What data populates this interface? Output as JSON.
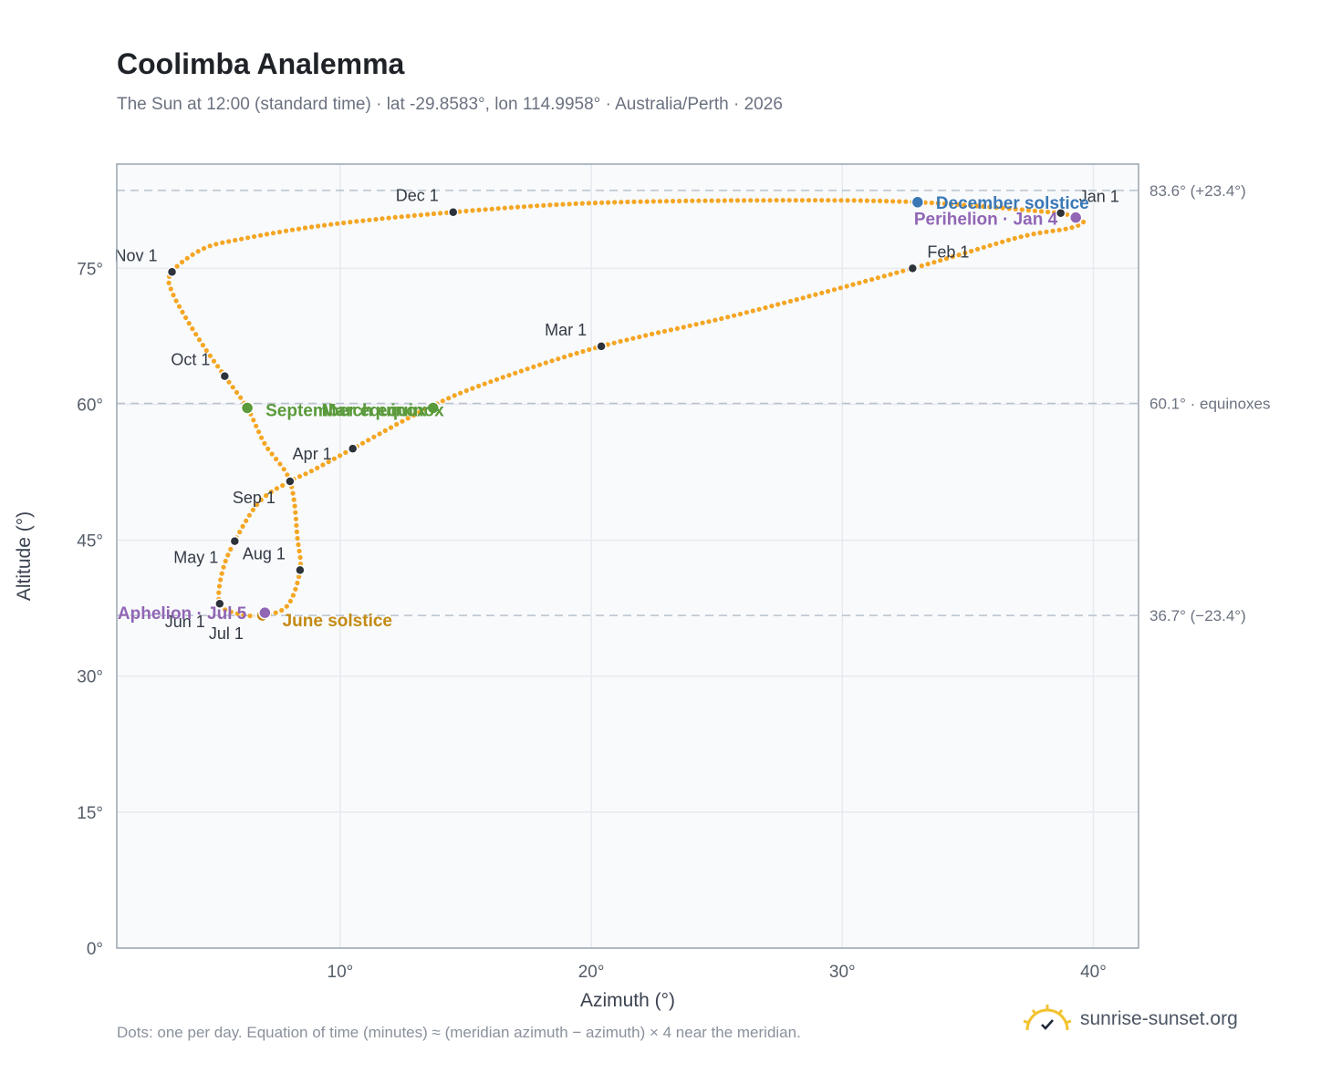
{
  "header": {
    "title": "Coolimba Analemma",
    "subtitle": "The Sun at 12:00 (standard time) · lat -29.8583°, lon 114.9958° · Australia/Perth · 2026"
  },
  "footer": {
    "note": "Dots: one per day. Equation of time (minutes) ≈ (meridian azimuth − azimuth) × 4 near the meridian.",
    "brand": "sunrise-sunset.org"
  },
  "colors": {
    "path": "#f5a623",
    "month_marker": "#2d333b",
    "equinox": "#5a9a3a",
    "december_solstice": "#3a78b5",
    "june_solstice": "#c48a12",
    "apsis": "#9166b5",
    "plot_bg": "#f8fafc",
    "grid": "#e6eaef",
    "ref_line": "#b9c2cc"
  },
  "chart_data": {
    "type": "scatter",
    "title": "Coolimba Analemma",
    "xlabel": "Azimuth (°)",
    "ylabel": "Altitude (°)",
    "xlim": [
      1.1,
      41.8
    ],
    "ylim": [
      0,
      86.5
    ],
    "x_ticks": [
      10,
      20,
      30,
      40
    ],
    "x_tick_labels": [
      "10°",
      "20°",
      "30°",
      "40°"
    ],
    "y_ticks": [
      0,
      15,
      30,
      45,
      60,
      75
    ],
    "y_tick_labels": [
      "0°",
      "15°",
      "30°",
      "45°",
      "60°",
      "75°"
    ],
    "grid": true,
    "reference_lines": [
      {
        "y": 83.6,
        "label": "83.6° (+23.4°)"
      },
      {
        "y": 60.1,
        "label": "60.1° · equinoxes"
      },
      {
        "y": 36.7,
        "label": "36.7° (−23.4°)"
      }
    ],
    "path_knots": [
      [
        38.7,
        81.1
      ],
      [
        39.4,
        80.6
      ],
      [
        39.6,
        80.1
      ],
      [
        39.0,
        79.4
      ],
      [
        37.0,
        78.4
      ],
      [
        32.8,
        75.0
      ],
      [
        26.0,
        70.0
      ],
      [
        20.4,
        66.4
      ],
      [
        16.0,
        62.5
      ],
      [
        13.5,
        59.6
      ],
      [
        10.5,
        55.1
      ],
      [
        8.9,
        52.7
      ],
      [
        8.0,
        51.5
      ],
      [
        6.8,
        49.3
      ],
      [
        5.8,
        44.9
      ],
      [
        5.3,
        41.5
      ],
      [
        5.2,
        38.0
      ],
      [
        5.9,
        36.9
      ],
      [
        6.9,
        36.7
      ],
      [
        7.9,
        37.8
      ],
      [
        8.4,
        41.7
      ],
      [
        8.3,
        45.2
      ],
      [
        8.0,
        51.5
      ],
      [
        7.0,
        55.6
      ],
      [
        6.3,
        59.6
      ],
      [
        5.4,
        63.1
      ],
      [
        4.3,
        67.5
      ],
      [
        3.3,
        72.4
      ],
      [
        3.3,
        74.6
      ],
      [
        4.5,
        77.1
      ],
      [
        6.0,
        78.2
      ],
      [
        9.5,
        79.8
      ],
      [
        14.5,
        81.2
      ],
      [
        20.0,
        82.2
      ],
      [
        27.0,
        82.5
      ],
      [
        33.0,
        82.3
      ],
      [
        38.7,
        81.1
      ]
    ],
    "month_markers": [
      {
        "label": "Jan 1",
        "x": 38.7,
        "y": 81.1
      },
      {
        "label": "Feb 1",
        "x": 32.8,
        "y": 75.0
      },
      {
        "label": "Mar 1",
        "x": 20.4,
        "y": 66.4
      },
      {
        "label": "Apr 1",
        "x": 10.5,
        "y": 55.1
      },
      {
        "label": "May 1",
        "x": 5.8,
        "y": 44.9
      },
      {
        "label": "Jun 1",
        "x": 5.2,
        "y": 38.0
      },
      {
        "label": "Jul 1",
        "x": 6.8,
        "y": 36.7
      },
      {
        "label": "Aug 1",
        "x": 8.4,
        "y": 41.7
      },
      {
        "label": "Sep 1",
        "x": 8.0,
        "y": 51.5
      },
      {
        "label": "Oct 1",
        "x": 5.4,
        "y": 63.1
      },
      {
        "label": "Nov 1",
        "x": 3.3,
        "y": 74.6
      },
      {
        "label": "Dec 1",
        "x": 14.5,
        "y": 81.2
      }
    ],
    "events": [
      {
        "label": "March equinox",
        "x": 13.7,
        "y": 59.6,
        "kind": "equinox"
      },
      {
        "label": "September equinox",
        "x": 6.3,
        "y": 59.6,
        "kind": "equinox"
      },
      {
        "label": "December solstice",
        "x": 33.0,
        "y": 82.3,
        "kind": "december_solstice"
      },
      {
        "label": "June solstice",
        "x": 6.9,
        "y": 36.7,
        "kind": "june_solstice"
      },
      {
        "label": "Perihelion · Jan 4",
        "x": 39.3,
        "y": 80.6,
        "kind": "apsis"
      },
      {
        "label": "Aphelion · Jul 5",
        "x": 7.0,
        "y": 37.0,
        "kind": "apsis"
      }
    ]
  }
}
